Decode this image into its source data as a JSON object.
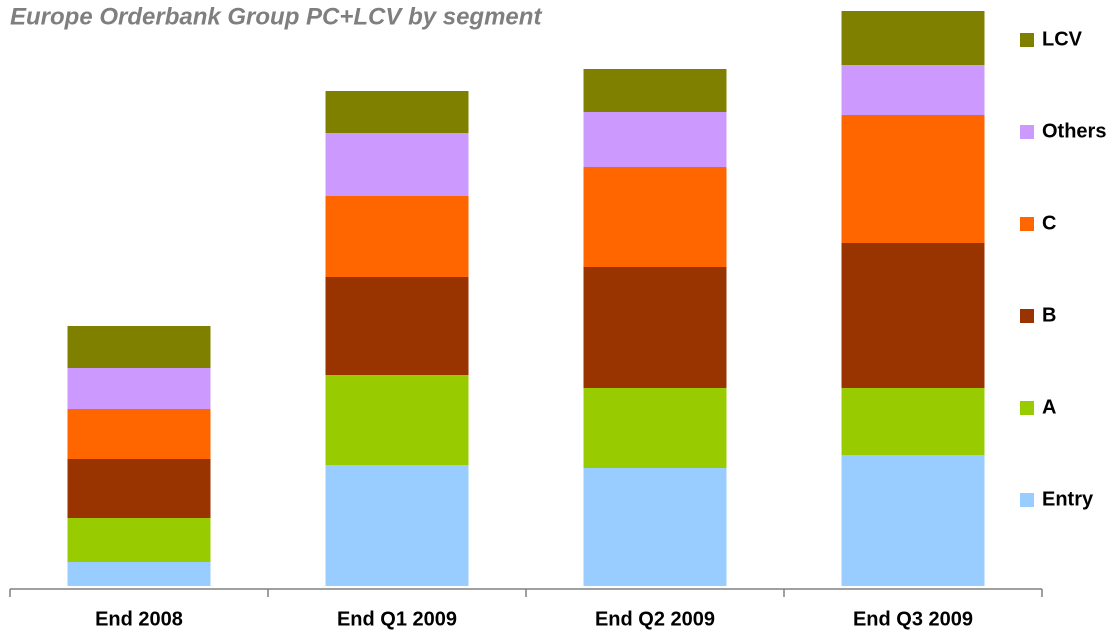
{
  "chart_data": {
    "type": "stacked_bar",
    "title": "Europe Orderbank Group PC+LCV by segment",
    "categories": [
      "End 2008",
      "End Q1 2009",
      "End Q2 2009",
      "End Q3 2009"
    ],
    "series": [
      {
        "name": "Entry",
        "color": "#99ccff",
        "values": [
          24,
          121,
          118,
          131
        ]
      },
      {
        "name": "A",
        "color": "#99cc00",
        "values": [
          44,
          90,
          80,
          67
        ]
      },
      {
        "name": "B",
        "color": "#993300",
        "values": [
          59,
          98,
          121,
          145
        ]
      },
      {
        "name": "C",
        "color": "#ff6600",
        "values": [
          50,
          81,
          100,
          128
        ]
      },
      {
        "name": "Others",
        "color": "#cc99ff",
        "values": [
          41,
          63,
          55,
          50
        ]
      },
      {
        "name": "LCV",
        "color": "#808000",
        "values": [
          42,
          42,
          43,
          54
        ]
      }
    ],
    "ylim": [
      0,
      575
    ],
    "legend": "right"
  }
}
